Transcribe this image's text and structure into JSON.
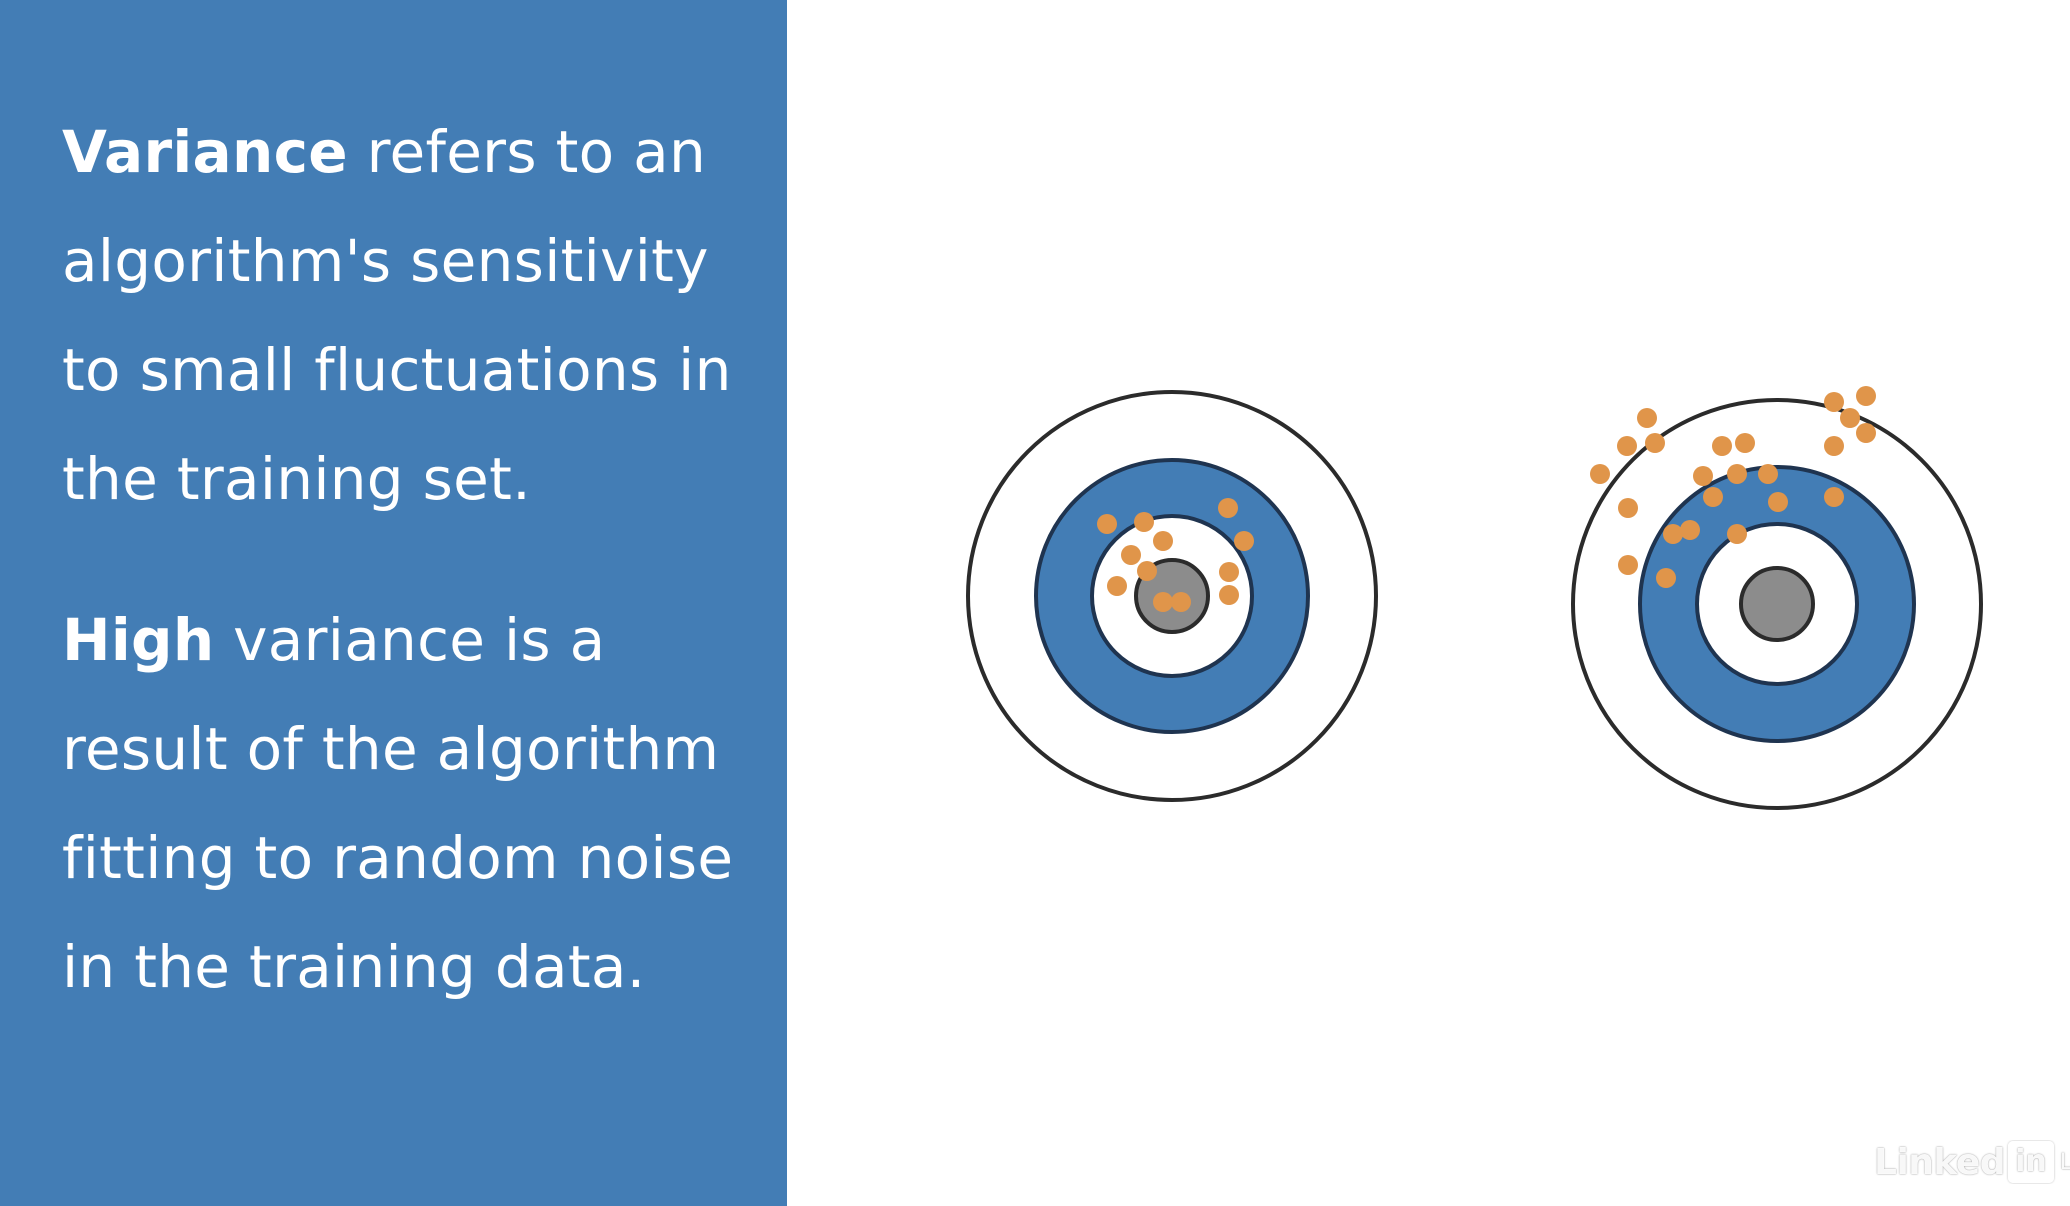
{
  "text": {
    "paragraph1": {
      "bold": "Variance",
      "line1_rest": " refers to an",
      "line2": "algorithm's sensitivity",
      "line3": "to small fluctuations in",
      "line4": "the training set."
    },
    "paragraph2": {
      "bold": "High",
      "line1_rest": " variance is a",
      "line2": "result of the algorithm",
      "line3": "fitting to random noise",
      "line4": "in the training data."
    }
  },
  "logo": {
    "linked": "Linked",
    "in": "in",
    "learning": "LEARNING"
  },
  "colors": {
    "panel": "#437db5",
    "ring_blue": "#437db5",
    "bullseye": "#8c8c8c",
    "dot": "#e0954a",
    "outline": "#2b2b2b"
  }
}
